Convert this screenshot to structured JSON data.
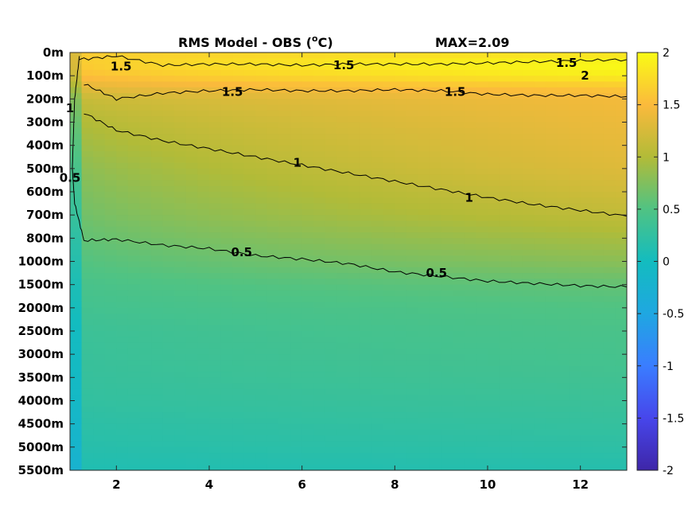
{
  "chart_data": {
    "type": "heatmap",
    "title": "RMS Model - OBS (",
    "title_sup": "o",
    "title_unit": "C)",
    "max_label": "MAX=2.09",
    "xlabel": "",
    "ylabel": "",
    "x_range": [
      1,
      13
    ],
    "x_ticks": [
      "2",
      "4",
      "6",
      "8",
      "10",
      "12"
    ],
    "x_tick_values": [
      2,
      4,
      6,
      8,
      10,
      12
    ],
    "y_ticks": [
      "0m",
      "100m",
      "200m",
      "300m",
      "400m",
      "500m",
      "600m",
      "700m",
      "800m",
      "1000m",
      "1500m",
      "2000m",
      "2500m",
      "3000m",
      "3500m",
      "4000m",
      "4500m",
      "5000m",
      "5500m"
    ],
    "colorbar": {
      "ticks": [
        "2",
        "1.5",
        "1",
        "0.5",
        "0",
        "-0.5",
        "-1",
        "-1.5",
        "-2"
      ],
      "tick_values": [
        2,
        1.5,
        1,
        0.5,
        0,
        -0.5,
        -1,
        -1.5,
        -2
      ],
      "range": [
        -2,
        2
      ],
      "colormap": "parula"
    },
    "contour_levels": [
      0.5,
      1,
      1.5,
      2
    ],
    "contour_labels": [
      {
        "text": "1.5",
        "x": 2.1,
        "level_index": 0.6
      },
      {
        "text": "1.5",
        "x": 6.9,
        "level_index": 0.55
      },
      {
        "text": "1.5",
        "x": 11.7,
        "level_index": 0.45
      },
      {
        "text": "1.5",
        "x": 4.5,
        "level_index": 1.7
      },
      {
        "text": "1.5",
        "x": 9.3,
        "level_index": 1.7
      },
      {
        "text": "2",
        "x": 12.1,
        "level_index": 1.0
      },
      {
        "text": "1",
        "x": 1.0,
        "level_index": 2.4
      },
      {
        "text": "0.5",
        "x": 1.0,
        "level_index": 5.4
      },
      {
        "text": "1",
        "x": 5.9,
        "level_index": 4.75
      },
      {
        "text": "1",
        "x": 9.6,
        "level_index": 6.25
      },
      {
        "text": "0.5",
        "x": 4.7,
        "level_index": 8.6
      },
      {
        "text": "0.5",
        "x": 8.9,
        "level_index": 9.5
      }
    ],
    "contour_lines": [
      {
        "level": 0.5,
        "x": [
          1.3,
          2,
          3,
          4,
          5,
          6,
          7,
          8,
          9,
          10,
          11,
          12,
          13
        ],
        "y": [
          8.1,
          8.05,
          8.3,
          8.45,
          8.75,
          8.9,
          9.1,
          9.45,
          9.65,
          9.85,
          9.95,
          10.05,
          10.1
        ]
      },
      {
        "level": 1,
        "x": [
          1.3,
          2,
          3,
          4,
          5,
          6,
          7,
          8,
          9,
          10,
          11,
          12,
          13
        ],
        "y": [
          2.6,
          3.35,
          3.8,
          4.15,
          4.5,
          4.85,
          5.2,
          5.55,
          5.9,
          6.25,
          6.55,
          6.8,
          7.05
        ]
      },
      {
        "level": 1.5,
        "x": [
          1.3,
          2,
          3,
          4,
          5,
          6,
          7,
          8,
          9,
          10,
          11,
          12,
          13
        ],
        "y": [
          1.35,
          2.0,
          1.75,
          1.65,
          1.6,
          1.65,
          1.65,
          1.6,
          1.65,
          1.8,
          1.85,
          1.85,
          1.9
        ]
      },
      {
        "level": 1.5,
        "x": [
          1.2,
          2,
          3,
          4,
          5,
          6,
          7,
          8,
          9,
          10,
          11,
          12,
          13
        ],
        "y": [
          0.3,
          0.15,
          0.55,
          0.5,
          0.5,
          0.55,
          0.5,
          0.5,
          0.5,
          0.45,
          0.4,
          0.35,
          0.3
        ]
      },
      {
        "level": 0.5,
        "x": [
          1.2,
          1.1,
          1.05,
          1.1,
          1.3
        ],
        "y": [
          0.2,
          2.0,
          5.0,
          6.5,
          8.1
        ]
      }
    ],
    "field_profile": {
      "levels_index": [
        0,
        0.5,
        1,
        1.5,
        2,
        3,
        4,
        5,
        6,
        7,
        8,
        9,
        10,
        11,
        12,
        13,
        14,
        15,
        16,
        17,
        18
      ],
      "value_at_x1": [
        1.6,
        1.6,
        1.5,
        1.3,
        1.1,
        0.95,
        0.85,
        0.75,
        0.68,
        0.62,
        0.55,
        0.48,
        0.42,
        0.38,
        0.32,
        0.3,
        0.28,
        0.25,
        0.2,
        0.16,
        0.1
      ],
      "value_at_x13": [
        1.8,
        2.0,
        1.9,
        1.6,
        1.45,
        1.4,
        1.35,
        1.3,
        1.2,
        1.1,
        0.95,
        0.8,
        0.6,
        0.5,
        0.45,
        0.42,
        0.38,
        0.33,
        0.28,
        0.22,
        0.15
      ]
    }
  }
}
